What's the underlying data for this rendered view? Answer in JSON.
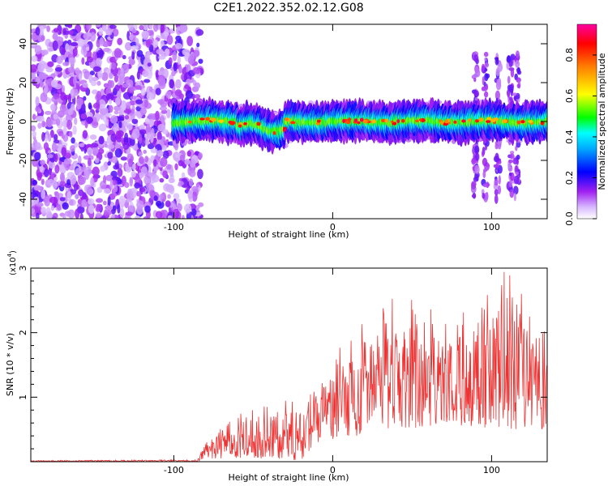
{
  "figure": {
    "title": "C2E1.2022.352.02.12.G08"
  },
  "chart_data": [
    {
      "type": "heatmap",
      "title": "C2E1.2022.352.02.12.G08",
      "xlabel": "Height of straight line (km)",
      "ylabel": "Frequency (Hz)",
      "xlim": [
        -190,
        135
      ],
      "ylim": [
        -50,
        50
      ],
      "x_ticks": [
        -100,
        0,
        100
      ],
      "y_ticks": [
        -40,
        -20,
        0,
        20,
        40
      ],
      "colorbar": {
        "label": "Normalized spectral amplitude",
        "range": [
          0,
          0.95
        ],
        "ticks": [
          "0.0",
          "0.2",
          "0.4",
          "0.6",
          "0.8"
        ],
        "tick_values": [
          0.0,
          0.2,
          0.4,
          0.6,
          0.8
        ],
        "colormap": [
          "#ffffff",
          "#a020f0",
          "#0000ff",
          "#00ffff",
          "#00ff00",
          "#ffff00",
          "#ff8000",
          "#ff0000",
          "#ff00a0"
        ]
      },
      "regions": [
        {
          "description": "broadband noise",
          "x_range": [
            -190,
            -95
          ],
          "freq_range": [
            -50,
            50
          ],
          "amplitude": 0.15
        },
        {
          "description": "narrow band signal",
          "x_range": [
            -100,
            135
          ],
          "freq_center": 0,
          "freq_halfwidth": 4,
          "amplitude_peak": 0.95
        },
        {
          "description": "vertical streaks",
          "x_range": [
            88,
            118
          ],
          "freq_range": [
            -40,
            35
          ],
          "amplitude": 0.2
        }
      ]
    },
    {
      "type": "line",
      "xlabel": "Height of straight line (km)",
      "ylabel": "SNR (10 * v/v)",
      "y_unit_label": "(x10",
      "y_unit_exp": "4",
      "y_unit_close": ")",
      "xlim": [
        -190,
        135
      ],
      "ylim": [
        0,
        3
      ],
      "x_ticks": [
        -100,
        0,
        100
      ],
      "y_ticks": [
        1,
        2,
        3
      ],
      "series": [
        {
          "color": "#ee3333",
          "envelope": [
            {
              "x": -190,
              "low": 0.0,
              "high": 0.02
            },
            {
              "x": -85,
              "low": 0.0,
              "high": 0.03
            },
            {
              "x": -80,
              "low": 0.05,
              "high": 0.35
            },
            {
              "x": -60,
              "low": 0.05,
              "high": 0.75
            },
            {
              "x": -40,
              "low": 0.05,
              "high": 0.9
            },
            {
              "x": -20,
              "low": 0.02,
              "high": 1.05
            },
            {
              "x": -10,
              "low": 0.3,
              "high": 1.25
            },
            {
              "x": 0,
              "low": 0.35,
              "high": 1.7
            },
            {
              "x": 15,
              "low": 0.4,
              "high": 2.05
            },
            {
              "x": 30,
              "low": 0.5,
              "high": 2.5
            },
            {
              "x": 50,
              "low": 0.5,
              "high": 2.6
            },
            {
              "x": 70,
              "low": 0.6,
              "high": 2.3
            },
            {
              "x": 90,
              "low": 0.5,
              "high": 2.5
            },
            {
              "x": 110,
              "low": 0.5,
              "high": 3.0
            },
            {
              "x": 135,
              "low": 0.5,
              "high": 2.0
            }
          ]
        }
      ]
    }
  ]
}
